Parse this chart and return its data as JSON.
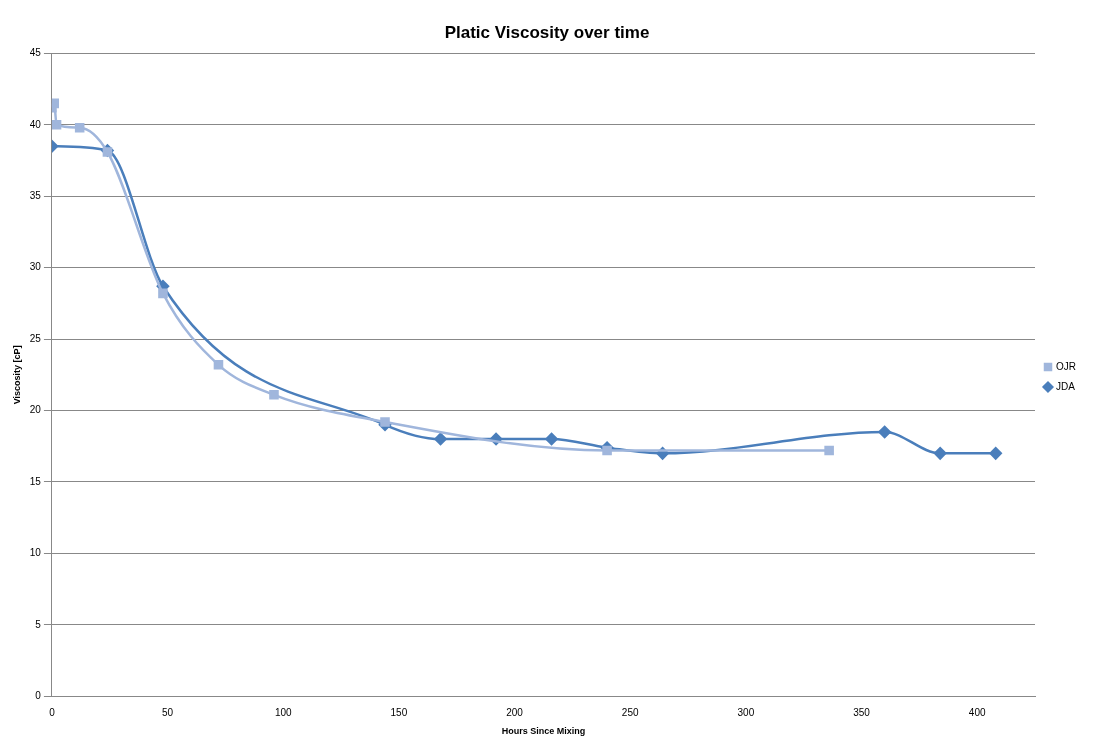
{
  "chart_data": {
    "type": "line",
    "title": "Platic Viscosity over time",
    "xlabel": "Hours Since Mixing",
    "ylabel": "Viscosity [cP]",
    "xlim": [
      0,
      425
    ],
    "xticks": [
      0,
      50,
      100,
      150,
      200,
      250,
      300,
      350,
      400
    ],
    "ylim": [
      0,
      45
    ],
    "yticks": [
      0,
      5,
      10,
      15,
      20,
      25,
      30,
      35,
      40,
      45
    ],
    "grid": "y",
    "legend": "right",
    "series": [
      {
        "name": "JDA",
        "color": "#4a7ebb",
        "marker": "diamond",
        "x": [
          0,
          24,
          48,
          144,
          168,
          192,
          216,
          240,
          264,
          360,
          384,
          408
        ],
        "values": [
          38.5,
          38.2,
          28.7,
          19,
          18,
          18,
          18,
          17.4,
          17,
          18.5,
          17,
          17
        ]
      },
      {
        "name": "OJR",
        "color": "#a0b6dc",
        "marker": "square",
        "x": [
          0,
          1,
          2,
          12,
          24,
          48,
          72,
          96,
          144,
          240,
          336
        ],
        "values": [
          41.2,
          41.5,
          40,
          39.8,
          38.1,
          28.2,
          23.2,
          21.1,
          19.2,
          17.2,
          17.2
        ]
      }
    ]
  }
}
